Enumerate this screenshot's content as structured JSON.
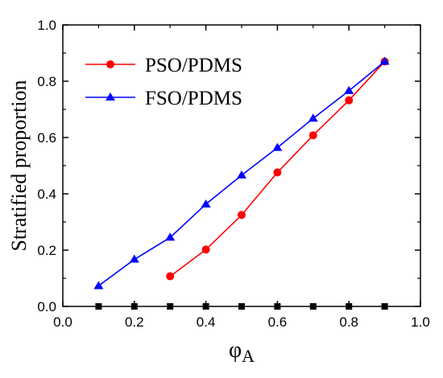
{
  "chart_data": {
    "type": "line",
    "xlabel": "φ",
    "xlabel_sub": "A",
    "ylabel": "Stratified proportion",
    "xlim": [
      0.0,
      1.0
    ],
    "ylim": [
      0.0,
      1.0
    ],
    "x_ticks": [
      "0.0",
      "0.2",
      "0.4",
      "0.6",
      "0.8",
      "1.0"
    ],
    "y_ticks": [
      "0.0",
      "0.2",
      "0.4",
      "0.6",
      "0.8",
      "1.0"
    ],
    "grid": false,
    "legend_position": "top-left",
    "series": [
      {
        "name": "PSO/PDMS",
        "color": "#ff0000",
        "marker": "circle",
        "x": [
          0.3,
          0.4,
          0.5,
          0.6,
          0.7,
          0.8,
          0.9
        ],
        "y": [
          0.107,
          0.202,
          0.325,
          0.476,
          0.608,
          0.732,
          0.87
        ]
      },
      {
        "name": "FSO/PDMS",
        "color": "#0000ff",
        "marker": "triangle",
        "x": [
          0.1,
          0.2,
          0.3,
          0.4,
          0.5,
          0.6,
          0.7,
          0.8,
          0.9
        ],
        "y": [
          0.073,
          0.167,
          0.245,
          0.363,
          0.466,
          0.564,
          0.668,
          0.766,
          0.87
        ]
      }
    ],
    "baseline_markers": {
      "color": "#000000",
      "marker": "square",
      "x": [
        0.1,
        0.2,
        0.3,
        0.4,
        0.5,
        0.6,
        0.7,
        0.8,
        0.9
      ],
      "y": [
        0,
        0,
        0,
        0,
        0,
        0,
        0,
        0,
        0
      ]
    }
  }
}
